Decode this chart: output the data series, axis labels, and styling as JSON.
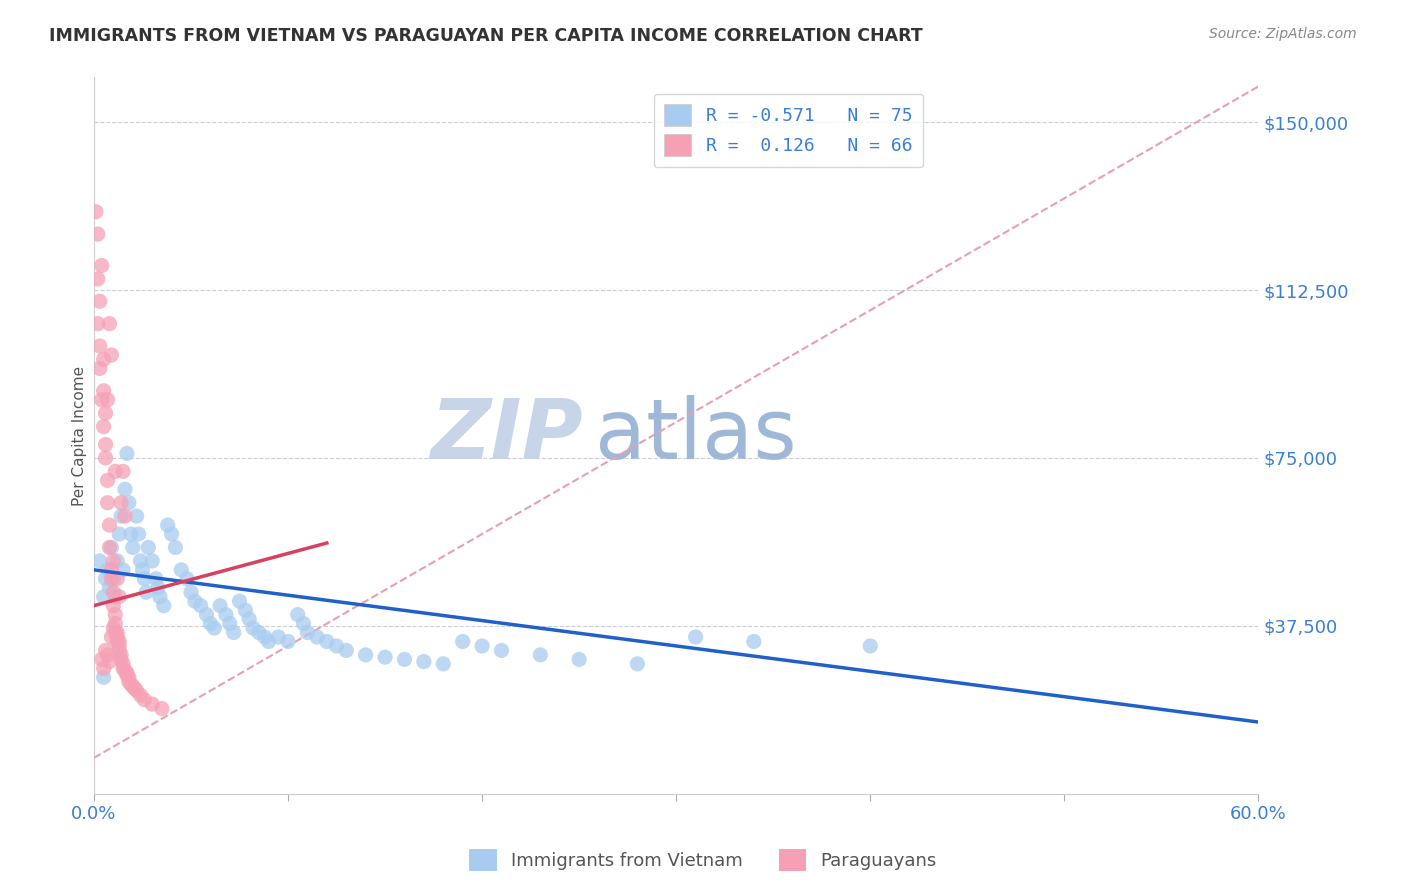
{
  "title": "IMMIGRANTS FROM VIETNAM VS PARAGUAYAN PER CAPITA INCOME CORRELATION CHART",
  "source": "Source: ZipAtlas.com",
  "ylabel": "Per Capita Income",
  "yticks": [
    0,
    37500,
    75000,
    112500,
    150000
  ],
  "ytick_labels": [
    "",
    "$37,500",
    "$75,000",
    "$112,500",
    "$150,000"
  ],
  "ylim": [
    0,
    160000
  ],
  "xlim": [
    0.0,
    0.6
  ],
  "legend_blue_r": "R = -0.571",
  "legend_blue_n": "N = 75",
  "legend_pink_r": "R =  0.126",
  "legend_pink_n": "N = 66",
  "blue_color": "#a8ccf0",
  "pink_color": "#f5a0b5",
  "blue_line_color": "#2060c8",
  "pink_line_color": "#d84060",
  "trendline_dashed_color": "#e8a0b0",
  "watermark_zip_color": "#c8d4e8",
  "watermark_atlas_color": "#a0b8d8",
  "title_color": "#333333",
  "axis_label_color": "#3a7fd5",
  "source_color": "#888888",
  "blue_scatter": [
    [
      0.003,
      52000
    ],
    [
      0.005,
      44000
    ],
    [
      0.005,
      26000
    ],
    [
      0.006,
      48000
    ],
    [
      0.007,
      50000
    ],
    [
      0.008,
      46000
    ],
    [
      0.009,
      55000
    ],
    [
      0.01,
      48000
    ],
    [
      0.011,
      44000
    ],
    [
      0.012,
      52000
    ],
    [
      0.013,
      58000
    ],
    [
      0.014,
      62000
    ],
    [
      0.015,
      50000
    ],
    [
      0.016,
      68000
    ],
    [
      0.017,
      76000
    ],
    [
      0.018,
      65000
    ],
    [
      0.019,
      58000
    ],
    [
      0.02,
      55000
    ],
    [
      0.022,
      62000
    ],
    [
      0.023,
      58000
    ],
    [
      0.024,
      52000
    ],
    [
      0.025,
      50000
    ],
    [
      0.026,
      48000
    ],
    [
      0.027,
      45000
    ],
    [
      0.028,
      55000
    ],
    [
      0.03,
      52000
    ],
    [
      0.032,
      48000
    ],
    [
      0.033,
      46000
    ],
    [
      0.034,
      44000
    ],
    [
      0.036,
      42000
    ],
    [
      0.038,
      60000
    ],
    [
      0.04,
      58000
    ],
    [
      0.042,
      55000
    ],
    [
      0.045,
      50000
    ],
    [
      0.048,
      48000
    ],
    [
      0.05,
      45000
    ],
    [
      0.052,
      43000
    ],
    [
      0.055,
      42000
    ],
    [
      0.058,
      40000
    ],
    [
      0.06,
      38000
    ],
    [
      0.062,
      37000
    ],
    [
      0.065,
      42000
    ],
    [
      0.068,
      40000
    ],
    [
      0.07,
      38000
    ],
    [
      0.072,
      36000
    ],
    [
      0.075,
      43000
    ],
    [
      0.078,
      41000
    ],
    [
      0.08,
      39000
    ],
    [
      0.082,
      37000
    ],
    [
      0.085,
      36000
    ],
    [
      0.088,
      35000
    ],
    [
      0.09,
      34000
    ],
    [
      0.095,
      35000
    ],
    [
      0.1,
      34000
    ],
    [
      0.105,
      40000
    ],
    [
      0.108,
      38000
    ],
    [
      0.11,
      36000
    ],
    [
      0.115,
      35000
    ],
    [
      0.12,
      34000
    ],
    [
      0.125,
      33000
    ],
    [
      0.13,
      32000
    ],
    [
      0.14,
      31000
    ],
    [
      0.15,
      30500
    ],
    [
      0.16,
      30000
    ],
    [
      0.17,
      29500
    ],
    [
      0.18,
      29000
    ],
    [
      0.19,
      34000
    ],
    [
      0.2,
      33000
    ],
    [
      0.21,
      32000
    ],
    [
      0.23,
      31000
    ],
    [
      0.25,
      30000
    ],
    [
      0.28,
      29000
    ],
    [
      0.31,
      35000
    ],
    [
      0.34,
      34000
    ],
    [
      0.4,
      33000
    ]
  ],
  "pink_scatter": [
    [
      0.001,
      130000
    ],
    [
      0.002,
      105000
    ],
    [
      0.002,
      125000
    ],
    [
      0.002,
      115000
    ],
    [
      0.003,
      100000
    ],
    [
      0.003,
      95000
    ],
    [
      0.003,
      110000
    ],
    [
      0.004,
      88000
    ],
    [
      0.004,
      118000
    ],
    [
      0.005,
      82000
    ],
    [
      0.005,
      90000
    ],
    [
      0.005,
      97000
    ],
    [
      0.006,
      78000
    ],
    [
      0.006,
      75000
    ],
    [
      0.006,
      85000
    ],
    [
      0.007,
      70000
    ],
    [
      0.007,
      65000
    ],
    [
      0.007,
      88000
    ],
    [
      0.008,
      60000
    ],
    [
      0.008,
      55000
    ],
    [
      0.008,
      105000
    ],
    [
      0.009,
      50000
    ],
    [
      0.009,
      48000
    ],
    [
      0.009,
      98000
    ],
    [
      0.01,
      45000
    ],
    [
      0.01,
      42000
    ],
    [
      0.01,
      52000
    ],
    [
      0.011,
      40000
    ],
    [
      0.011,
      38000
    ],
    [
      0.011,
      72000
    ],
    [
      0.012,
      36000
    ],
    [
      0.012,
      34000
    ],
    [
      0.012,
      48000
    ],
    [
      0.013,
      33000
    ],
    [
      0.013,
      32000
    ],
    [
      0.013,
      44000
    ],
    [
      0.014,
      31000
    ],
    [
      0.014,
      30000
    ],
    [
      0.014,
      65000
    ],
    [
      0.015,
      29000
    ],
    [
      0.015,
      28000
    ],
    [
      0.015,
      72000
    ],
    [
      0.016,
      27500
    ],
    [
      0.016,
      62000
    ],
    [
      0.017,
      27000
    ],
    [
      0.017,
      26500
    ],
    [
      0.018,
      26000
    ],
    [
      0.018,
      25000
    ],
    [
      0.019,
      24500
    ],
    [
      0.02,
      24000
    ],
    [
      0.021,
      23500
    ],
    [
      0.022,
      23000
    ],
    [
      0.024,
      22000
    ],
    [
      0.026,
      21000
    ],
    [
      0.03,
      20000
    ],
    [
      0.035,
      19000
    ],
    [
      0.004,
      30000
    ],
    [
      0.005,
      28000
    ],
    [
      0.006,
      32000
    ],
    [
      0.007,
      31000
    ],
    [
      0.008,
      29500
    ],
    [
      0.009,
      35000
    ],
    [
      0.01,
      37000
    ],
    [
      0.011,
      36000
    ],
    [
      0.012,
      35000
    ],
    [
      0.013,
      34000
    ]
  ],
  "blue_trendline": [
    [
      0.0,
      50000
    ],
    [
      0.6,
      16000
    ]
  ],
  "pink_trendline": [
    [
      0.0,
      42000
    ],
    [
      0.12,
      56000
    ]
  ],
  "dashed_trendline": [
    [
      0.0,
      8000
    ],
    [
      0.6,
      158000
    ]
  ]
}
